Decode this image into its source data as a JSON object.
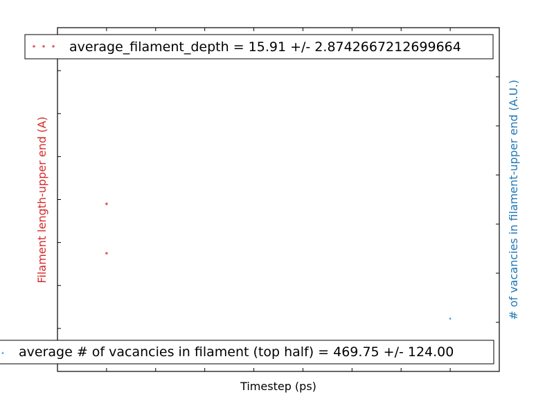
{
  "chart_data": {
    "type": "scatter",
    "xlabel": "Timestep (ps)",
    "ylabel_left": "Filament length-upper end (A)",
    "ylabel_right": "# of vacancies in filament-upper end (A.U.)",
    "colors": {
      "left": "#d62728",
      "right": "#1f77b4"
    },
    "xlim": [
      0,
      9
    ],
    "ylim_left": [
      0,
      8
    ],
    "ylim_right": [
      0,
      7
    ],
    "series": [
      {
        "name": "average_filament_depth =  15.91 +/- 2.8742667212699664",
        "axis": "left",
        "color": "#d62728",
        "marker": "circle",
        "x": [
          1,
          1
        ],
        "y": [
          3.9,
          2.75
        ]
      },
      {
        "name": "average # of vacancies in filament (top half) =  469.75 +/-  124.00",
        "axis": "right",
        "color": "#1f77b4",
        "marker": "triangle",
        "x": [
          1,
          1,
          8
        ],
        "y": [
          6.85,
          6.78,
          1.08
        ]
      }
    ],
    "grid": false,
    "legends": [
      "top",
      "bottom"
    ]
  }
}
